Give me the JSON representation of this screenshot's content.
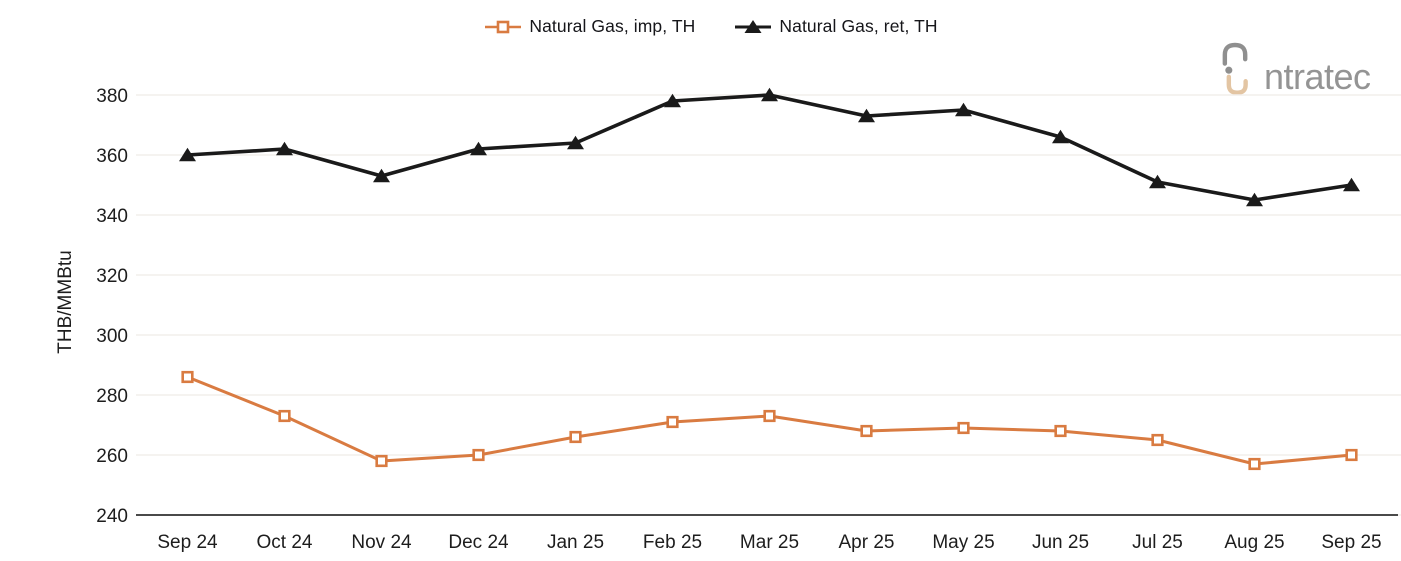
{
  "logo": {
    "brand": "intratec",
    "text_part": "ntratec"
  },
  "chart_data": {
    "type": "line",
    "title": "",
    "xlabel": "",
    "ylabel": "THB/MMBtu",
    "categories": [
      "Sep 24",
      "Oct 24",
      "Nov 24",
      "Dec 24",
      "Jan 25",
      "Feb 25",
      "Mar 25",
      "Apr 25",
      "May 25",
      "Jun 25",
      "Jul 25",
      "Aug 25",
      "Sep 25"
    ],
    "series": [
      {
        "name": "Natural Gas, imp, TH",
        "marker": "open-square",
        "color": "#d97b41",
        "values": [
          286,
          273,
          258,
          260,
          266,
          271,
          273,
          268,
          269,
          268,
          265,
          257,
          260
        ]
      },
      {
        "name": "Natural Gas, ret, TH",
        "marker": "filled-triangle",
        "color": "#1a1a1a",
        "values": [
          360,
          362,
          353,
          362,
          364,
          378,
          380,
          373,
          375,
          366,
          351,
          345,
          350
        ]
      }
    ],
    "ylim": [
      240,
      390
    ],
    "yticks": [
      240,
      260,
      280,
      300,
      320,
      340,
      360,
      380
    ],
    "grid": "horizontal",
    "legend_position": "top-center"
  },
  "colors": {
    "grid": "#f2efec",
    "axis_line": "#4a4a4a",
    "tick_text": "#1d1d1d",
    "logo_gray": "#8f8f8f",
    "logo_tan": "#e3c5a3"
  }
}
